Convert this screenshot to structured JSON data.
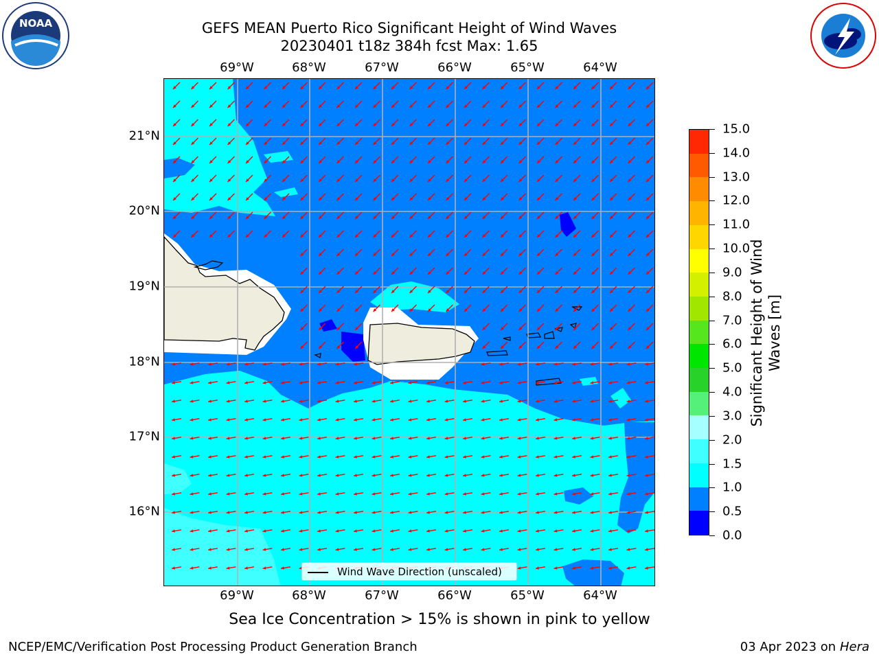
{
  "title_line1": "GEFS MEAN Puerto Rico Significant Height of Wind Waves",
  "title_line2": "20230401 t18z 384h fcst   Max: 1.65",
  "lon_labels": [
    "69°W",
    "68°W",
    "67°W",
    "66°W",
    "65°W",
    "64°W"
  ],
  "lat_labels": [
    "21°N",
    "20°N",
    "19°N",
    "18°N",
    "17°N",
    "16°N"
  ],
  "legend_text": "Wind Wave Direction (unscaled)",
  "colorbar": {
    "title_line1": "Significant Height of Wind",
    "title_line2": "Waves [m]",
    "tick_labels": [
      "0.0",
      "0.5",
      "1.0",
      "1.5",
      "2.0",
      "3.0",
      "4.0",
      "5.0",
      "6.0",
      "7.0",
      "8.0",
      "9.0",
      "10.0",
      "11.0",
      "12.0",
      "13.0",
      "14.0",
      "15.0"
    ],
    "colors": [
      "#0000ff",
      "#0080ff",
      "#00ffff",
      "#40ffff",
      "#a6ffff",
      "#55f07a",
      "#28d228",
      "#00e600",
      "#55e61e",
      "#a0e600",
      "#d2f000",
      "#ffff00",
      "#ffd700",
      "#ffb400",
      "#ff8c00",
      "#ff5a00",
      "#ff2800",
      "#ff0000"
    ]
  },
  "map_colors": {
    "level_0_0_5": "#0000ff",
    "level_0_5_1_0": "#0080ff",
    "level_1_0_1_5": "#00ffff",
    "level_1_5_2_0": "#40ffff",
    "land": "#efedde",
    "arrow": "#ff0000"
  },
  "note": "Sea Ice Concentration > 15% is shown in pink to yellow",
  "footer_left": "NCEP/EMC/Verification Post Processing Product Generation Branch",
  "footer_right_prefix": "03 Apr 2023 on ",
  "footer_right_host": "Hera",
  "logos": {
    "left": "noaa-logo",
    "right": "nws-logo"
  }
}
